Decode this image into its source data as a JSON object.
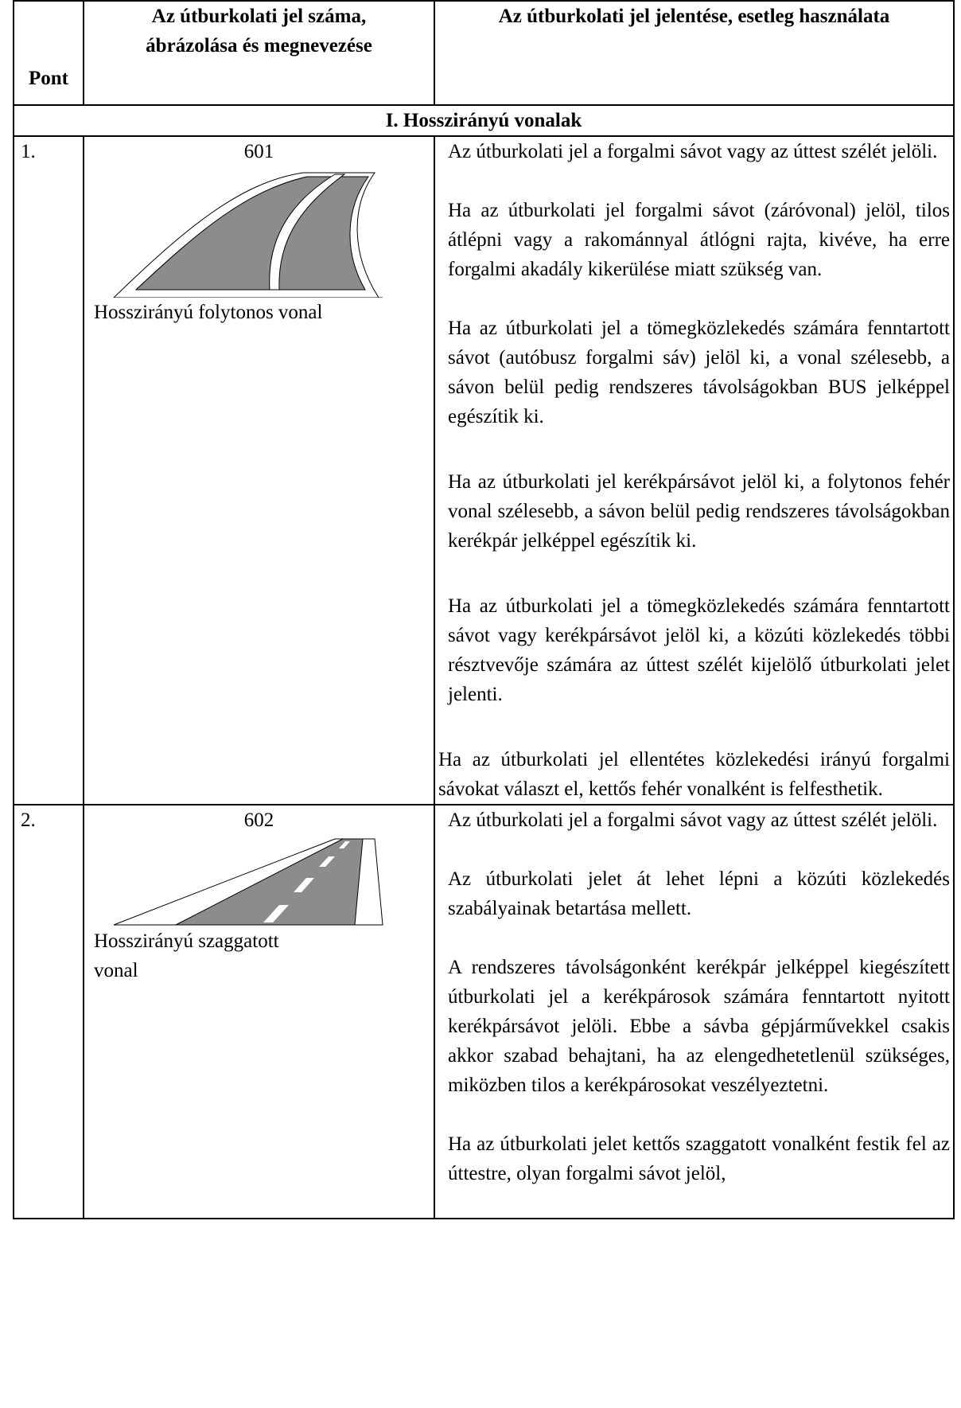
{
  "table": {
    "header": [
      "Pont",
      "Az útburkolati jel száma, ábrázolása és megnevezése",
      "Az útburkolati jel jelentése, esetleg használata"
    ],
    "section": "I. Hosszirányú vonalak",
    "rows": [
      {
        "point": "1.",
        "number": "601",
        "name": "Hosszirányú folytonos vonal",
        "paragraphs": [
          "Az útburkolati jel a forgalmi sávot vagy az úttest szélét jelöli.",
          "Ha az útburkolati jel forgalmi sávot (záróvonal) jelöl, tilos átlépni vagy a rakománnyal átlógni rajta, kivéve, ha erre forgalmi akadály kikerülése miatt szükség van.",
          "Ha az útburkolati jel a tömegközlekedés számára fenntartott sávot (autóbusz forgalmi sáv) jelöl ki, a vonal szélesebb, a sávon belül pedig rendszeres távolságokban BUS jelképpel egészítik ki.",
          "Ha az útburkolati jel kerékpársávot jelöl ki, a folytonos fehér vonal szélesebb, a sávon belül pedig rendszeres távolságokban kerékpár jelképpel egészítik ki.",
          "Ha az útburkolati jel a tömegközlekedés számára fenntartott sávot vagy kerékpársávot jelöl ki, a közúti közlekedés többi résztvevője számára az úttest szélét kijelölő útburkolati jelet jelenti.",
          "Ha az útburkolati jel ellentétes közlekedési irányú forgalmi sávokat választ el, kettős fehér vonalként is felfesthetik."
        ]
      },
      {
        "point": "2.",
        "number": "602",
        "name": "Hosszirányú szaggatott vonal",
        "paragraphs": [
          "Az útburkolati jel a forgalmi sávot vagy az úttest szélét jelöli.",
          "Az útburkolati jelet át lehet lépni a közúti közlekedés szabályainak betartása mellett.",
          "A rendszeres távolságonként kerékpár jelképpel kiegészített útburkolati jel a kerékpárosok számára fenntartott nyitott kerékpársávot jelöli. Ebbe a sávba gépjárművekkel csakis akkor szabad behajtani, ha az elengedhetetlenül szükséges, miközben tilos a kerékpárosokat veszélyeztetni.",
          "Ha az útburkolati jelet kettős szaggatott vonalként festik fel az úttestre, olyan forgalmi sávot jelöl,"
        ]
      }
    ]
  }
}
